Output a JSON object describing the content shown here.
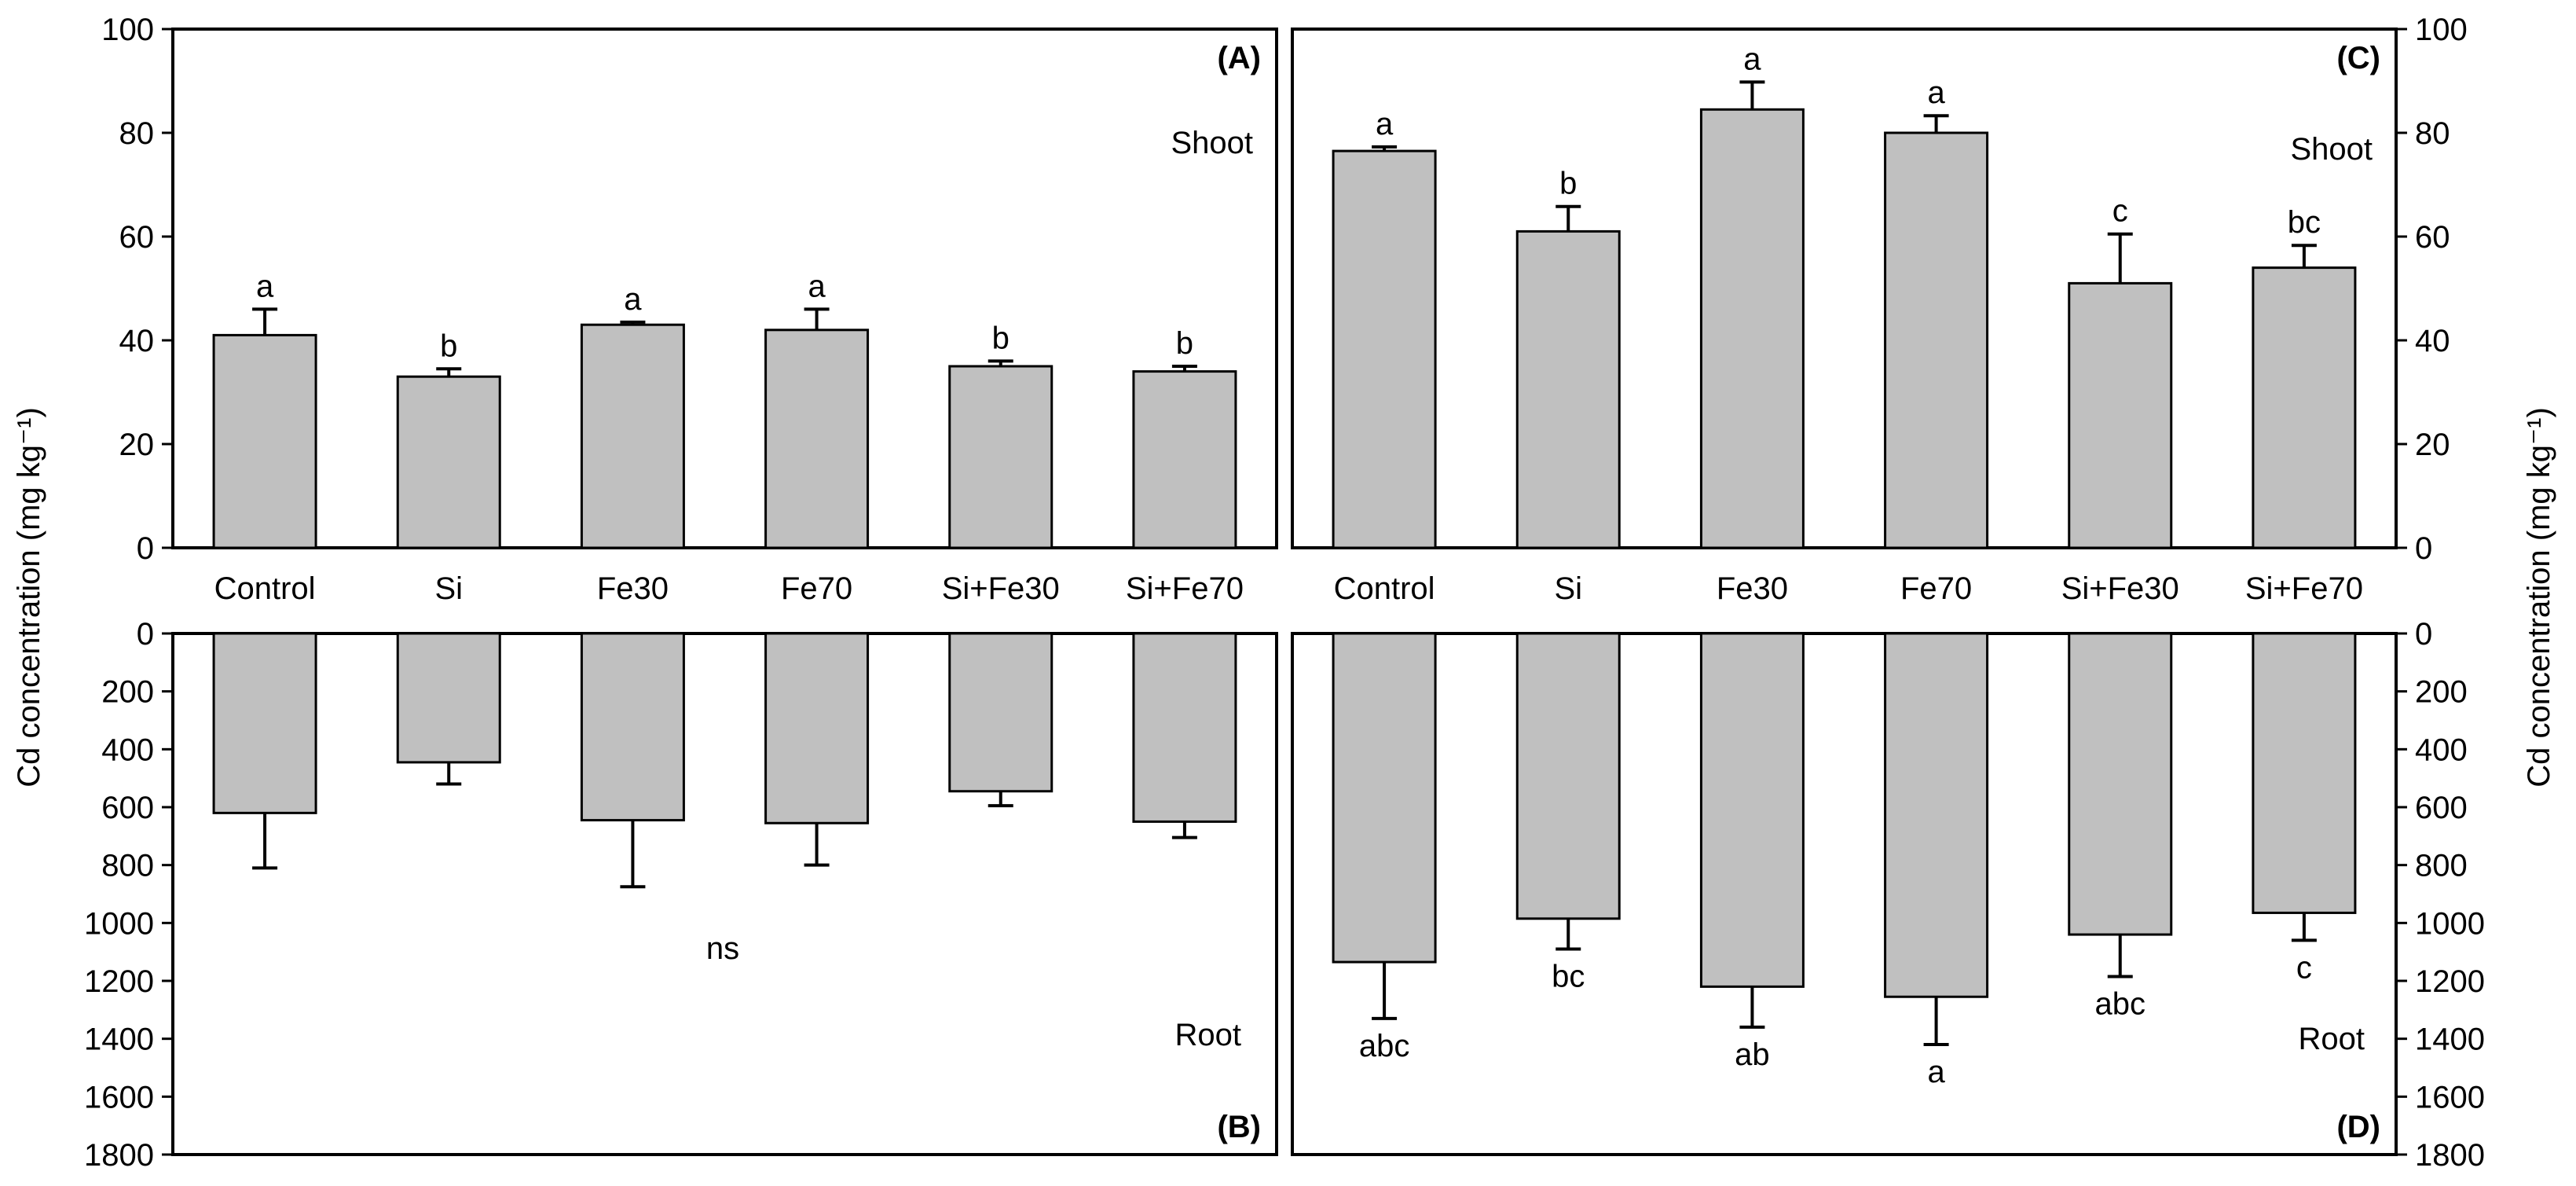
{
  "ylabel": "Cd concentration (mg kg⁻¹)",
  "colors": {
    "bar_fill": "#c0c0c0",
    "stroke": "#000000",
    "background": "#ffffff"
  },
  "chart_data": [
    {
      "id": "A",
      "type": "bar",
      "panel_label": "(A)",
      "tissue_label": "Shoot",
      "categories": [
        "Control",
        "Si",
        "Fe30",
        "Fe70",
        "Si+Fe30",
        "Si+Fe70"
      ],
      "values": [
        41,
        33,
        43,
        42,
        35,
        34
      ],
      "errors": [
        5,
        1.5,
        0.5,
        4,
        1,
        1
      ],
      "significance": [
        "a",
        "b",
        "a",
        "a",
        "b",
        "b"
      ],
      "ylim": [
        0,
        100
      ],
      "yticks": [
        0,
        20,
        40,
        60,
        80,
        100
      ]
    },
    {
      "id": "B",
      "type": "bar",
      "inverted": true,
      "panel_label": "(B)",
      "tissue_label": "Root",
      "categories": [
        "Control",
        "Si",
        "Fe30",
        "Fe70",
        "Si+Fe30",
        "Si+Fe70"
      ],
      "values": [
        620,
        445,
        645,
        655,
        545,
        650
      ],
      "errors": [
        190,
        75,
        230,
        145,
        50,
        55
      ],
      "note": "ns",
      "ylim": [
        0,
        1800
      ],
      "yticks": [
        0,
        200,
        400,
        600,
        800,
        1000,
        1200,
        1400,
        1600,
        1800
      ]
    },
    {
      "id": "C",
      "type": "bar",
      "panel_label": "(C)",
      "tissue_label": "Shoot",
      "categories": [
        "Control",
        "Si",
        "Fe30",
        "Fe70",
        "Si+Fe30",
        "Si+Fe70"
      ],
      "values": [
        76.5,
        61,
        84.5,
        80,
        51,
        54
      ],
      "errors": [
        0.8,
        4.8,
        5.3,
        3.3,
        9.5,
        4.3
      ],
      "significance": [
        "a",
        "b",
        "a",
        "a",
        "c",
        "bc"
      ],
      "ylim": [
        0,
        100
      ],
      "yticks": [
        0,
        20,
        40,
        60,
        80,
        100
      ]
    },
    {
      "id": "D",
      "type": "bar",
      "inverted": true,
      "panel_label": "(D)",
      "tissue_label": "Root",
      "categories": [
        "Control",
        "Si",
        "Fe30",
        "Fe70",
        "Si+Fe30",
        "Si+Fe70"
      ],
      "values": [
        1135,
        985,
        1220,
        1255,
        1040,
        965
      ],
      "errors": [
        195,
        105,
        140,
        165,
        145,
        95
      ],
      "significance": [
        "abc",
        "bc",
        "ab",
        "a",
        "abc",
        "c"
      ],
      "ylim": [
        0,
        1800
      ],
      "yticks": [
        0,
        200,
        400,
        600,
        800,
        1000,
        1200,
        1400,
        1600,
        1800
      ]
    }
  ]
}
